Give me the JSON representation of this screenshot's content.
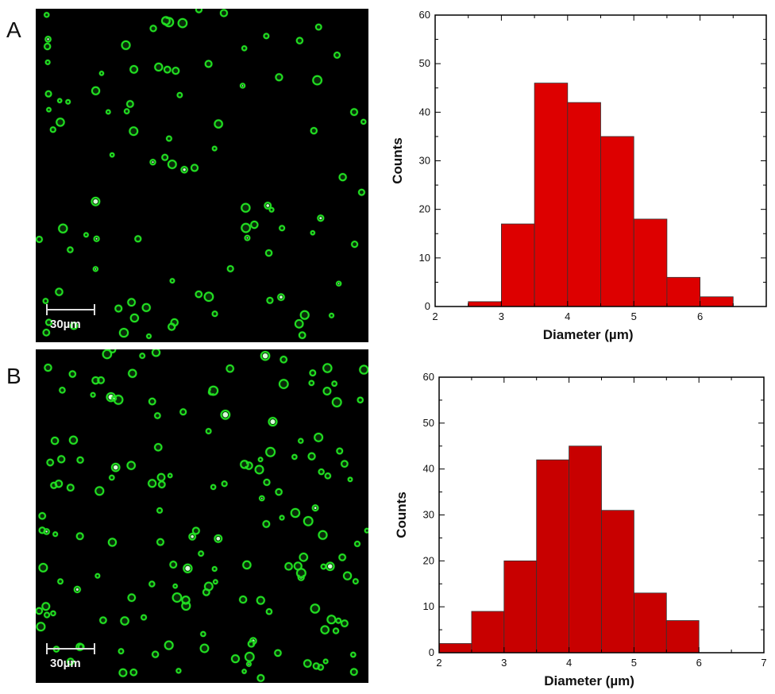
{
  "panels": [
    {
      "label": "A",
      "scale_bar_label": "30µm",
      "droplet_color": "#22e022"
    },
    {
      "label": "B",
      "scale_bar_label": "30µm",
      "droplet_color": "#22e022"
    }
  ],
  "chart_data": [
    {
      "type": "bar",
      "title": "",
      "xlabel": "Diameter (µm)",
      "ylabel": "Counts",
      "bin_width": 0.5,
      "bin_starts": [
        2.5,
        3.0,
        3.5,
        4.0,
        4.5,
        5.0,
        5.5,
        6.0
      ],
      "values": [
        1,
        17,
        46,
        42,
        35,
        18,
        6,
        2
      ],
      "xlim": [
        2,
        7
      ],
      "ylim": [
        0,
        60
      ],
      "xticks": [
        "2",
        "3",
        "4",
        "5",
        "6"
      ],
      "yticks": [
        "0",
        "10",
        "20",
        "30",
        "40",
        "50",
        "60"
      ],
      "bar_color": "#dd0000",
      "grid": false
    },
    {
      "type": "bar",
      "title": "",
      "xlabel": "Diameter (µm)",
      "ylabel": "Counts",
      "bin_width": 0.5,
      "bin_starts": [
        2.0,
        2.5,
        3.0,
        3.5,
        4.0,
        4.5,
        5.0,
        5.5
      ],
      "values": [
        2,
        9,
        20,
        42,
        45,
        31,
        13,
        7
      ],
      "xlim": [
        2,
        7
      ],
      "ylim": [
        0,
        60
      ],
      "xticks": [
        "2",
        "3",
        "4",
        "5",
        "6",
        "7"
      ],
      "yticks": [
        "0",
        "10",
        "20",
        "30",
        "40",
        "50",
        "60"
      ],
      "bar_color": "#c80000",
      "grid": false
    }
  ]
}
